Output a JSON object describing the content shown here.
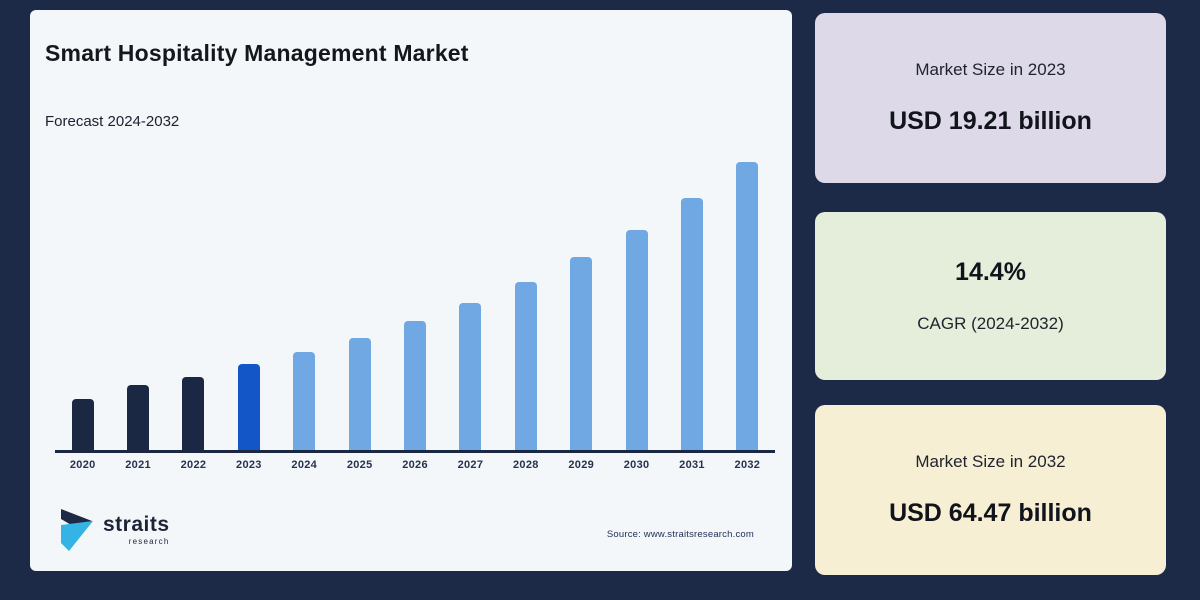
{
  "page": {
    "background": "#1c2a47",
    "card_background": "#f3f7fa"
  },
  "header": {
    "title": "Smart Hospitality Management Market",
    "subtitle": "Forecast 2024-2032"
  },
  "chart_data": {
    "type": "bar",
    "title": "Smart Hospitality Management Market",
    "subtitle": "Forecast 2024-2032",
    "categories": [
      "2020",
      "2021",
      "2022",
      "2023",
      "2024",
      "2025",
      "2026",
      "2027",
      "2028",
      "2029",
      "2030",
      "2031",
      "2032"
    ],
    "values": [
      11.4,
      14.6,
      16.3,
      19.21,
      21.98,
      25.14,
      28.76,
      32.91,
      37.64,
      43.07,
      49.27,
      56.36,
      64.47
    ],
    "unit": "USD billion",
    "ylim": [
      0,
      70
    ],
    "grid": false,
    "legend_position": "none",
    "y_axis_shown": false,
    "segments": [
      "historical",
      "historical",
      "historical",
      "base_year",
      "forecast",
      "forecast",
      "forecast",
      "forecast",
      "forecast",
      "forecast",
      "forecast",
      "forecast",
      "forecast"
    ],
    "segment_colors": {
      "historical": "#1b2844",
      "base_year": "#1256c8",
      "forecast": "#6fa8e3"
    },
    "axis_line_color": "#1b2844",
    "x_tick_color": "#27324e"
  },
  "stat_cards": [
    {
      "label": "Market Size in 2023",
      "value": "USD 19.21 billion",
      "bg": "#ded9e8",
      "value_position": "below"
    },
    {
      "label": "CAGR (2024-2032)",
      "value": "14.4%",
      "bg": "#e5eeda",
      "value_position": "above"
    },
    {
      "label": "Market Size in 2032",
      "value": "USD 64.47 billion",
      "bg": "#f6efd3",
      "value_position": "below"
    }
  ],
  "footer": {
    "logo": {
      "name": "straits",
      "sub": "research",
      "dark_color": "#1e2a45",
      "cyan_color": "#33b4e4"
    },
    "source": "Source: www.straitsresearch.com"
  }
}
